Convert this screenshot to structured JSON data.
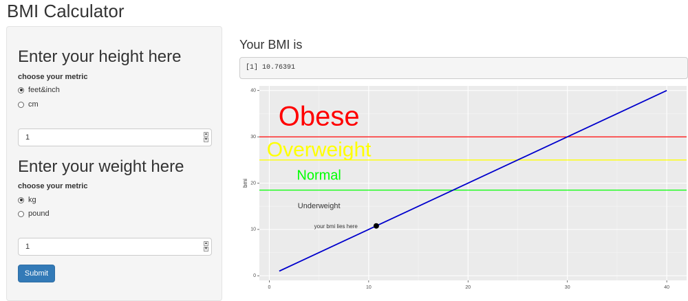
{
  "app_title": "BMI Calculator",
  "height_section": {
    "title": "Enter your height here",
    "metric_label": "choose your metric",
    "options": [
      {
        "label": "feet&inch",
        "checked": true
      },
      {
        "label": "cm",
        "checked": false
      }
    ],
    "input_value": "1"
  },
  "weight_section": {
    "title": "Enter your weight here",
    "metric_label": "choose your metric",
    "options": [
      {
        "label": "kg",
        "checked": true
      },
      {
        "label": "pound",
        "checked": false
      }
    ],
    "input_value": "1"
  },
  "submit_label": "Submit",
  "result": {
    "title": "Your BMI is",
    "output": "[1] 10.76391"
  },
  "chart_data": {
    "type": "line",
    "ylabel": "bmi",
    "xlim": [
      -1,
      42
    ],
    "ylim": [
      -1,
      41
    ],
    "x_ticks": [
      0,
      10,
      20,
      30,
      40
    ],
    "y_ticks": [
      0,
      10,
      20,
      30,
      40
    ],
    "grid": true,
    "series": [
      {
        "x": [
          1,
          40
        ],
        "y": [
          1,
          40
        ],
        "color": "#0000cc"
      }
    ],
    "hlines": [
      {
        "y": 30,
        "color": "#ff0000"
      },
      {
        "y": 25,
        "color": "#ffff00"
      },
      {
        "y": 18.5,
        "color": "#00ff00"
      }
    ],
    "point": {
      "x": 10.76391,
      "y": 10.76391,
      "color": "#000000"
    },
    "annotations": [
      {
        "text": "Obese",
        "x": 5,
        "y": 34,
        "color": "#ff0000",
        "size": "large"
      },
      {
        "text": "Overweight",
        "x": 5,
        "y": 27,
        "color": "#ffff00",
        "size": "medium"
      },
      {
        "text": "Normal",
        "x": 5,
        "y": 21.5,
        "color": "#00ff00",
        "size": "small"
      },
      {
        "text": "Underweight",
        "x": 5,
        "y": 15,
        "color": "#333333",
        "size": "xsmall"
      },
      {
        "text": "your bmi lies here",
        "x": 6.7,
        "y": 10.6,
        "color": "#333333",
        "size": "tiny"
      }
    ]
  }
}
